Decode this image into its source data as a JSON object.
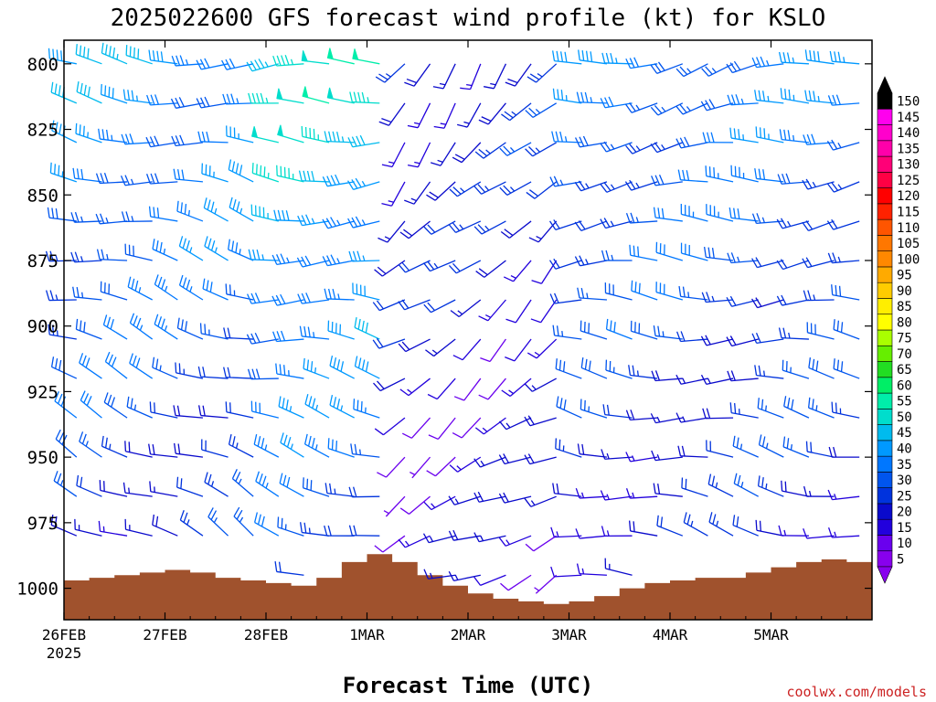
{
  "chart_data": {
    "type": "wind-barb-profile",
    "title": "2025022600 GFS forecast wind profile (kt) for KSLO",
    "xlabel": "Forecast Time (UTC)",
    "ylabel": "",
    "credit": "coolwx.com/models",
    "xlim_hours": [
      0,
      192
    ],
    "ylim_hpa": [
      791,
      1012
    ],
    "pressure_ticks": [
      800,
      825,
      850,
      875,
      900,
      925,
      950,
      975,
      1000
    ],
    "time_ticks": [
      {
        "hour": 0,
        "label": "26FEB",
        "sublabel": "2025"
      },
      {
        "hour": 24,
        "label": "27FEB",
        "sublabel": ""
      },
      {
        "hour": 48,
        "label": "28FEB",
        "sublabel": ""
      },
      {
        "hour": 72,
        "label": "1MAR",
        "sublabel": ""
      },
      {
        "hour": 96,
        "label": "2MAR",
        "sublabel": ""
      },
      {
        "hour": 120,
        "label": "3MAR",
        "sublabel": ""
      },
      {
        "hour": 144,
        "label": "4MAR",
        "sublabel": ""
      },
      {
        "hour": 168,
        "label": "5MAR",
        "sublabel": ""
      }
    ],
    "barb_time_step_hours": 6,
    "barb_pressure_levels": [
      800,
      815,
      830,
      845,
      860,
      875,
      890,
      905,
      920,
      935,
      950,
      965,
      980,
      995
    ],
    "colorbar": {
      "levels": [
        5,
        10,
        15,
        20,
        25,
        30,
        35,
        40,
        45,
        50,
        55,
        60,
        65,
        70,
        75,
        80,
        85,
        90,
        95,
        100,
        105,
        110,
        115,
        120,
        125,
        130,
        135,
        140,
        145,
        150
      ],
      "colors": [
        "#8800ee",
        "#6a00ee",
        "#2200dd",
        "#0a0acc",
        "#0033dd",
        "#0055ee",
        "#0077ff",
        "#0099ff",
        "#00bbee",
        "#00ddcc",
        "#00eeaa",
        "#00ee66",
        "#22dd22",
        "#66ee00",
        "#aaff00",
        "#ffff00",
        "#ffee00",
        "#ffcc00",
        "#ffaa00",
        "#ff8800",
        "#ff7700",
        "#ff5500",
        "#ff2200",
        "#ff0000",
        "#ff0044",
        "#ff0077",
        "#ff00aa",
        "#ff00cc",
        "#ff00ee",
        "#000000"
      ]
    },
    "surface_pressure": {
      "hours": [
        0,
        6,
        12,
        18,
        24,
        30,
        36,
        42,
        48,
        54,
        60,
        66,
        72,
        78,
        84,
        90,
        96,
        102,
        108,
        114,
        120,
        126,
        132,
        138,
        144,
        150,
        156,
        162,
        168,
        174,
        180,
        186,
        192
      ],
      "hpa": [
        997,
        996,
        995,
        994,
        993,
        994,
        996,
        997,
        998,
        999,
        996,
        990,
        987,
        990,
        995,
        999,
        1002,
        1004,
        1005,
        1006,
        1005,
        1003,
        1000,
        998,
        997,
        996,
        996,
        994,
        992,
        990,
        989,
        990,
        992
      ]
    },
    "wind_regimes": [
      {
        "from_hour": 0,
        "to_hour": 48,
        "direction_deg": 275,
        "speed_kt": 32
      },
      {
        "from_hour": 48,
        "to_hour": 78,
        "direction_deg": 265,
        "speed_kt": 40
      },
      {
        "from_hour": 78,
        "to_hour": 120,
        "direction_deg": 220,
        "speed_kt": 18
      },
      {
        "from_hour": 120,
        "to_hour": 192,
        "direction_deg": 260,
        "speed_kt": 28
      }
    ]
  }
}
